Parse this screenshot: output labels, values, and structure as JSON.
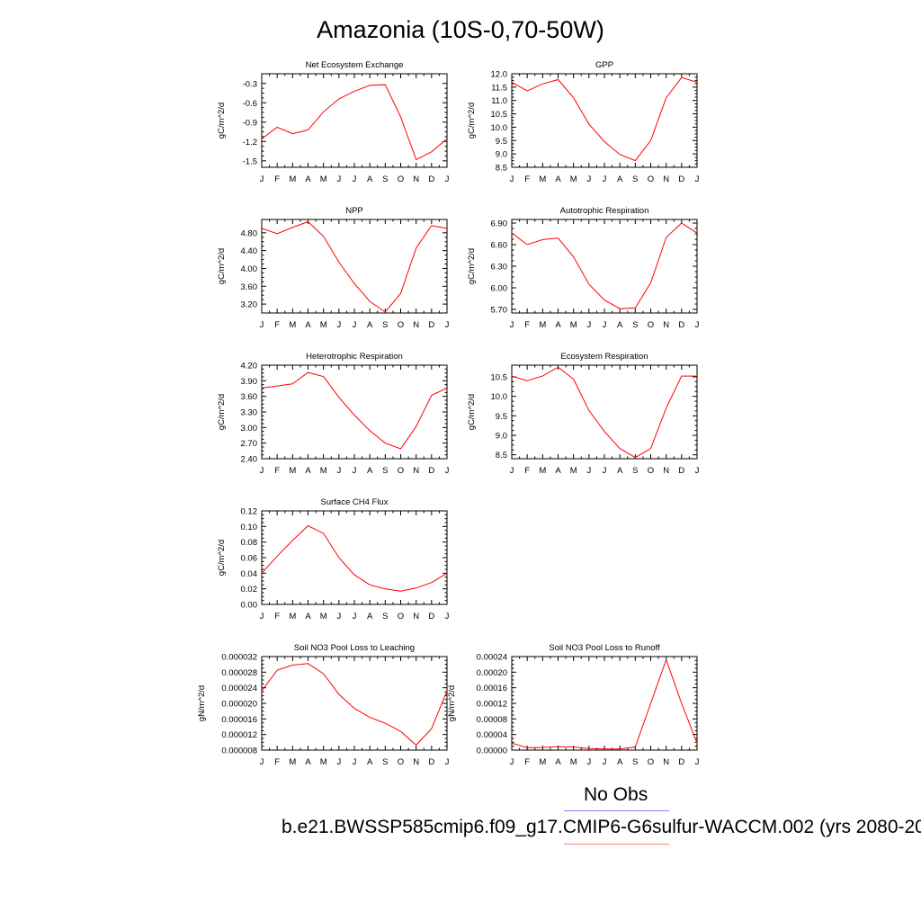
{
  "figure": {
    "title": "Amazonia (10S-0,70-50W)",
    "legend": {
      "obs_label": "No Obs",
      "obs_color": "#8080ff",
      "case_label": "b.e21.BWSSP585cmip6.f09_g17.CMIP6-G6sulfur-WACCM.002 (yrs 2080-20",
      "case_color": "#ff8080"
    },
    "line_color": "#ff0000"
  },
  "chart_data": [
    {
      "type": "line",
      "title": "Net Ecosystem Exchange",
      "ylabel": "gC/m^2/d",
      "categories": [
        "J",
        "F",
        "M",
        "A",
        "M",
        "J",
        "J",
        "A",
        "S",
        "O",
        "N",
        "D",
        "J"
      ],
      "ylim": [
        -1.6,
        -0.15
      ],
      "yticks": [
        -1.5,
        -1.2,
        -0.9,
        -0.6,
        -0.3
      ],
      "ytick_labels": [
        "-1.5",
        "-1.2",
        "-0.9",
        "-0.6",
        "-0.3"
      ],
      "series": [
        {
          "values": [
            -1.16,
            -0.98,
            -1.08,
            -1.02,
            -0.74,
            -0.54,
            -0.42,
            -0.33,
            -0.32,
            -0.82,
            -1.48,
            -1.36,
            -1.16
          ]
        }
      ]
    },
    {
      "type": "line",
      "title": "GPP",
      "ylabel": "gC/m^2/d",
      "categories": [
        "J",
        "F",
        "M",
        "A",
        "M",
        "J",
        "J",
        "A",
        "S",
        "O",
        "N",
        "D",
        "J"
      ],
      "ylim": [
        8.5,
        12.0
      ],
      "yticks": [
        8.5,
        9.0,
        9.5,
        10.0,
        10.5,
        11.0,
        11.5,
        12.0
      ],
      "ytick_labels": [
        "8.5",
        "9.0",
        "9.5",
        "10.0",
        "10.5",
        "11.0",
        "11.5",
        "12.0"
      ],
      "series": [
        {
          "values": [
            11.68,
            11.36,
            11.62,
            11.78,
            11.1,
            10.12,
            9.46,
            8.98,
            8.75,
            9.5,
            11.1,
            11.86,
            11.68
          ]
        }
      ]
    },
    {
      "type": "line",
      "title": "NPP",
      "ylabel": "gC/m^2/d",
      "categories": [
        "J",
        "F",
        "M",
        "A",
        "M",
        "J",
        "J",
        "A",
        "S",
        "O",
        "N",
        "D",
        "J"
      ],
      "ylim": [
        3.0,
        5.1
      ],
      "yticks": [
        3.2,
        3.6,
        4.0,
        4.4,
        4.8
      ],
      "ytick_labels": [
        "3.20",
        "3.60",
        "4.00",
        "4.40",
        "4.80"
      ],
      "series": [
        {
          "values": [
            4.9,
            4.78,
            4.92,
            5.05,
            4.72,
            4.14,
            3.66,
            3.26,
            3.02,
            3.44,
            4.46,
            4.96,
            4.9
          ]
        }
      ]
    },
    {
      "type": "line",
      "title": "Autotrophic Respiration",
      "ylabel": "gC/m^2/d",
      "categories": [
        "J",
        "F",
        "M",
        "A",
        "M",
        "J",
        "J",
        "A",
        "S",
        "O",
        "N",
        "D",
        "J"
      ],
      "ylim": [
        5.65,
        6.95
      ],
      "yticks": [
        5.7,
        6.0,
        6.3,
        6.6,
        6.9
      ],
      "ytick_labels": [
        "5.70",
        "6.00",
        "6.30",
        "6.60",
        "6.90"
      ],
      "series": [
        {
          "values": [
            6.76,
            6.6,
            6.67,
            6.69,
            6.43,
            6.05,
            5.83,
            5.71,
            5.72,
            6.07,
            6.7,
            6.9,
            6.76
          ]
        }
      ]
    },
    {
      "type": "line",
      "title": "Heterotrophic Respiration",
      "ylabel": "gC/m^2/d",
      "categories": [
        "J",
        "F",
        "M",
        "A",
        "M",
        "J",
        "J",
        "A",
        "S",
        "O",
        "N",
        "D",
        "J"
      ],
      "ylim": [
        2.4,
        4.2
      ],
      "yticks": [
        2.4,
        2.7,
        3.0,
        3.3,
        3.6,
        3.9,
        4.2
      ],
      "ytick_labels": [
        "2.40",
        "2.70",
        "3.00",
        "3.30",
        "3.60",
        "3.90",
        "4.20"
      ],
      "series": [
        {
          "values": [
            3.76,
            3.8,
            3.84,
            4.06,
            3.98,
            3.58,
            3.24,
            2.94,
            2.7,
            2.59,
            3.02,
            3.62,
            3.76
          ]
        }
      ]
    },
    {
      "type": "line",
      "title": "Ecosystem Respiration",
      "ylabel": "gC/m^2/d",
      "categories": [
        "J",
        "F",
        "M",
        "A",
        "M",
        "J",
        "J",
        "A",
        "S",
        "O",
        "N",
        "D",
        "J"
      ],
      "ylim": [
        8.4,
        10.8
      ],
      "yticks": [
        8.5,
        9.0,
        9.5,
        10.0,
        10.5
      ],
      "ytick_labels": [
        "8.5",
        "9.0",
        "9.5",
        "10.0",
        "10.5"
      ],
      "series": [
        {
          "values": [
            10.52,
            10.4,
            10.52,
            10.75,
            10.44,
            9.64,
            9.1,
            8.66,
            8.43,
            8.66,
            9.7,
            10.52,
            10.52
          ]
        }
      ]
    },
    {
      "type": "line",
      "title": "Surface CH4 Flux",
      "ylabel": "gC/m^2/d",
      "categories": [
        "J",
        "F",
        "M",
        "A",
        "M",
        "J",
        "J",
        "A",
        "S",
        "O",
        "N",
        "D",
        "J"
      ],
      "ylim": [
        0.0,
        0.12
      ],
      "yticks": [
        0.0,
        0.02,
        0.04,
        0.06,
        0.08,
        0.1,
        0.12
      ],
      "ytick_labels": [
        "0.00",
        "0.02",
        "0.04",
        "0.06",
        "0.08",
        "0.10",
        "0.12"
      ],
      "series": [
        {
          "values": [
            0.04,
            0.062,
            0.082,
            0.101,
            0.091,
            0.06,
            0.038,
            0.025,
            0.02,
            0.017,
            0.021,
            0.028,
            0.04
          ]
        }
      ]
    },
    {
      "type": "line",
      "title": "Soil NO3 Pool Loss to Leaching",
      "ylabel": "gN/m^2/d",
      "categories": [
        "J",
        "F",
        "M",
        "A",
        "M",
        "J",
        "J",
        "A",
        "S",
        "O",
        "N",
        "D",
        "J"
      ],
      "ylim": [
        8e-06,
        3.2e-05
      ],
      "yticks": [
        8e-06,
        1.2e-05,
        1.6e-05,
        2e-05,
        2.4e-05,
        2.8e-05,
        3.2e-05
      ],
      "ytick_labels": [
        "0.000008",
        "0.000012",
        "0.000016",
        "0.000020",
        "0.000024",
        "0.000028",
        "0.000032"
      ],
      "series": [
        {
          "values": [
            2.32e-05,
            2.85e-05,
            2.98e-05,
            3.02e-05,
            2.76e-05,
            2.23e-05,
            1.87e-05,
            1.64e-05,
            1.49e-05,
            1.28e-05,
            9.3e-06,
            1.35e-05,
            2.32e-05
          ]
        }
      ]
    },
    {
      "type": "line",
      "title": "Soil NO3 Pool Loss to Runoff",
      "ylabel": "gN/m^2/d",
      "categories": [
        "J",
        "F",
        "M",
        "A",
        "M",
        "J",
        "J",
        "A",
        "S",
        "O",
        "N",
        "D",
        "J"
      ],
      "ylim": [
        0.0,
        0.00024
      ],
      "yticks": [
        0.0,
        4e-05,
        8e-05,
        0.00012,
        0.00016,
        0.0002,
        0.00024
      ],
      "ytick_labels": [
        "0.00000",
        "0.00004",
        "0.00008",
        "0.00012",
        "0.00016",
        "0.00020",
        "0.00024"
      ],
      "series": [
        {
          "values": [
            1.8e-05,
            6e-06,
            7e-06,
            9e-06,
            8e-06,
            4e-06,
            3e-06,
            3e-06,
            8e-06,
            0.00012,
            0.000232,
            0.00012,
            1.8e-05
          ]
        }
      ]
    }
  ]
}
